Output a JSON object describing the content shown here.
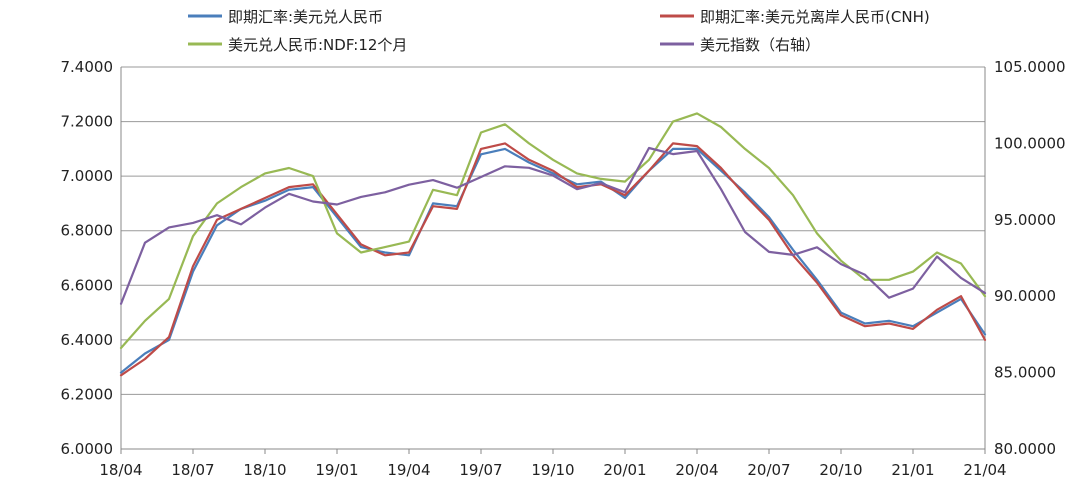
{
  "chart_data": {
    "type": "line",
    "title": "",
    "xlabel": "",
    "ylabel": "",
    "x_tick_labels": [
      "18/04",
      "18/07",
      "18/10",
      "19/01",
      "19/04",
      "19/07",
      "19/10",
      "20/01",
      "20/04",
      "20/07",
      "20/10",
      "21/01",
      "21/04"
    ],
    "x_tick_index": [
      0,
      3,
      6,
      9,
      12,
      15,
      18,
      21,
      24,
      27,
      30,
      33,
      36
    ],
    "y_left": {
      "min": 6.0,
      "max": 7.4,
      "step": 0.2,
      "tick_labels": [
        "6.0000",
        "6.2000",
        "6.4000",
        "6.6000",
        "6.8000",
        "7.0000",
        "7.2000",
        "7.4000"
      ]
    },
    "y_right": {
      "min": 80,
      "max": 105,
      "step": 5,
      "tick_labels": [
        "80.0000",
        "85.0000",
        "90.0000",
        "95.0000",
        "100.0000",
        "105.0000"
      ]
    },
    "grid": true,
    "legend_position": "top",
    "series": [
      {
        "name": "即期汇率:美元兑人民币",
        "axis": "left",
        "color": "#4a7ebb",
        "values": [
          6.28,
          6.35,
          6.4,
          6.65,
          6.82,
          6.88,
          6.91,
          6.95,
          6.96,
          6.85,
          6.74,
          6.72,
          6.71,
          6.9,
          6.89,
          7.08,
          7.1,
          7.05,
          7.01,
          6.97,
          6.98,
          6.92,
          7.02,
          7.1,
          7.1,
          7.02,
          6.94,
          6.85,
          6.73,
          6.62,
          6.5,
          6.46,
          6.47,
          6.45,
          6.5,
          6.55,
          6.42
        ]
      },
      {
        "name": "即期汇率:美元兑离岸人民币(CNH)",
        "axis": "left",
        "color": "#be4b48",
        "values": [
          6.27,
          6.33,
          6.41,
          6.67,
          6.84,
          6.88,
          6.92,
          6.96,
          6.97,
          6.86,
          6.75,
          6.71,
          6.72,
          6.89,
          6.88,
          7.1,
          7.12,
          7.06,
          7.02,
          6.96,
          6.97,
          6.93,
          7.02,
          7.12,
          7.11,
          7.03,
          6.93,
          6.84,
          6.71,
          6.61,
          6.49,
          6.45,
          6.46,
          6.44,
          6.51,
          6.56,
          6.4
        ]
      },
      {
        "name": "美元兑人民币:NDF:12个月",
        "axis": "left",
        "color": "#98b954",
        "values": [
          6.37,
          6.47,
          6.55,
          6.78,
          6.9,
          6.96,
          7.01,
          7.03,
          7.0,
          6.79,
          6.72,
          6.74,
          6.76,
          6.95,
          6.93,
          7.16,
          7.19,
          7.12,
          7.06,
          7.01,
          6.99,
          6.98,
          7.06,
          7.2,
          7.23,
          7.18,
          7.1,
          7.03,
          6.93,
          6.79,
          6.69,
          6.62,
          6.62,
          6.65,
          6.72,
          6.68,
          6.56
        ]
      },
      {
        "name": "美元指数（右轴）",
        "axis": "right",
        "color": "#7d60a0",
        "values": [
          89.5,
          93.5,
          94.5,
          94.8,
          95.3,
          94.7,
          95.8,
          96.7,
          96.2,
          96.0,
          96.5,
          96.8,
          97.3,
          97.6,
          97.1,
          97.8,
          98.5,
          98.4,
          97.9,
          97.0,
          97.4,
          96.8,
          99.7,
          99.3,
          99.5,
          97.0,
          94.2,
          92.9,
          92.7,
          93.2,
          92.1,
          91.4,
          89.9,
          90.5,
          92.6,
          91.2,
          90.2
        ]
      }
    ]
  }
}
